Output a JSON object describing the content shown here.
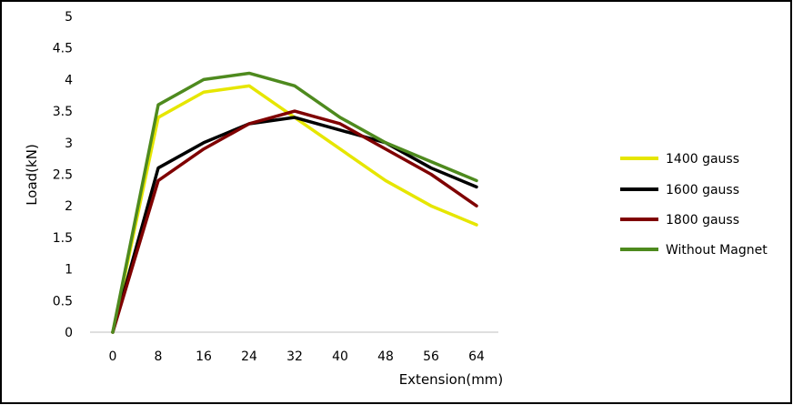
{
  "chart_data": {
    "type": "line",
    "x": [
      0,
      8,
      16,
      24,
      32,
      40,
      48,
      56,
      64
    ],
    "xlabel": "Extension(mm)",
    "ylabel": "Load(kN)",
    "ylim": [
      0,
      5
    ],
    "ytick_labels": [
      "0",
      "0.5",
      "1",
      "1.5",
      "2",
      "2.5",
      "3",
      "3.5",
      "4",
      "4.5",
      "5"
    ],
    "xtick_labels": [
      "0",
      "8",
      "16",
      "24",
      "32",
      "40",
      "48",
      "56",
      "64"
    ],
    "grid": false,
    "legend_position": "right",
    "series": [
      {
        "name": "1400 gauss",
        "color": "#e6e600",
        "values": [
          0,
          3.4,
          3.8,
          3.9,
          3.4,
          2.9,
          2.4,
          2.0,
          1.7
        ]
      },
      {
        "name": "1600 gauss",
        "color": "#000000",
        "values": [
          0,
          2.6,
          3.0,
          3.3,
          3.4,
          3.2,
          3.0,
          2.6,
          2.3
        ]
      },
      {
        "name": "1800 gauss",
        "color": "#7f0000",
        "values": [
          0,
          2.4,
          2.9,
          3.3,
          3.5,
          3.3,
          2.9,
          2.5,
          2.0
        ]
      },
      {
        "name": "Without Magnet",
        "color": "#4e8a1e",
        "values": [
          0,
          3.6,
          4.0,
          4.1,
          3.9,
          3.4,
          3.0,
          2.7,
          2.4
        ]
      }
    ]
  }
}
